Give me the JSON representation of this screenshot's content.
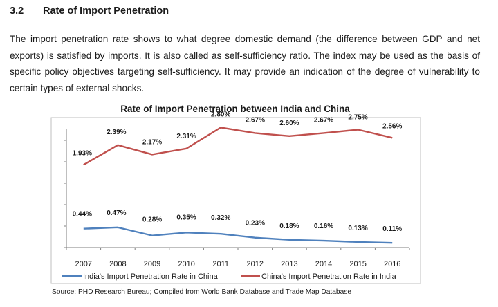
{
  "section": {
    "number": "3.2",
    "title": "Rate of Import Penetration",
    "paragraph": "The import penetration rate shows to what degree domestic demand (the difference between GDP and net exports) is satisfied by imports. It is also called as self-sufficiency ratio. The index may be used as the basis of specific policy objectives targeting self-sufficiency. It may provide an indication of the degree of vulnerability to certain types of external shocks."
  },
  "colors": {
    "china_series": "#4f81bd",
    "india_series": "#c0504d",
    "axis": "#7f7f7f",
    "frame": "#bfbfbf"
  },
  "chart_data": {
    "type": "line",
    "title": "Rate of Import Penetration between India and China",
    "categories": [
      "2007",
      "2008",
      "2009",
      "2010",
      "2011",
      "2012",
      "2013",
      "2014",
      "2015",
      "2016"
    ],
    "series": [
      {
        "name": "India's Import Penetration Rate in China",
        "values": [
          0.44,
          0.47,
          0.28,
          0.35,
          0.32,
          0.23,
          0.18,
          0.16,
          0.13,
          0.11
        ],
        "labels": [
          "0.44%",
          "0.47%",
          "0.28%",
          "0.35%",
          "0.32%",
          "0.23%",
          "0.18%",
          "0.16%",
          "0.13%",
          "0.11%"
        ]
      },
      {
        "name": "China's Import Penetration Rate in India",
        "values": [
          1.93,
          2.39,
          2.17,
          2.31,
          2.8,
          2.67,
          2.6,
          2.67,
          2.75,
          2.56
        ],
        "labels": [
          "1.93%",
          "2.39%",
          "2.17%",
          "2.31%",
          "2.80%",
          "2.67%",
          "2.60%",
          "2.67%",
          "2.75%",
          "2.56%"
        ]
      }
    ],
    "xlabel": "",
    "ylabel": "",
    "ylim": [
      0,
      3
    ],
    "grid": false,
    "legend_position": "bottom",
    "source": "Source: PHD Research Bureau; Compiled from World Bank Database and Trade Map Database"
  }
}
